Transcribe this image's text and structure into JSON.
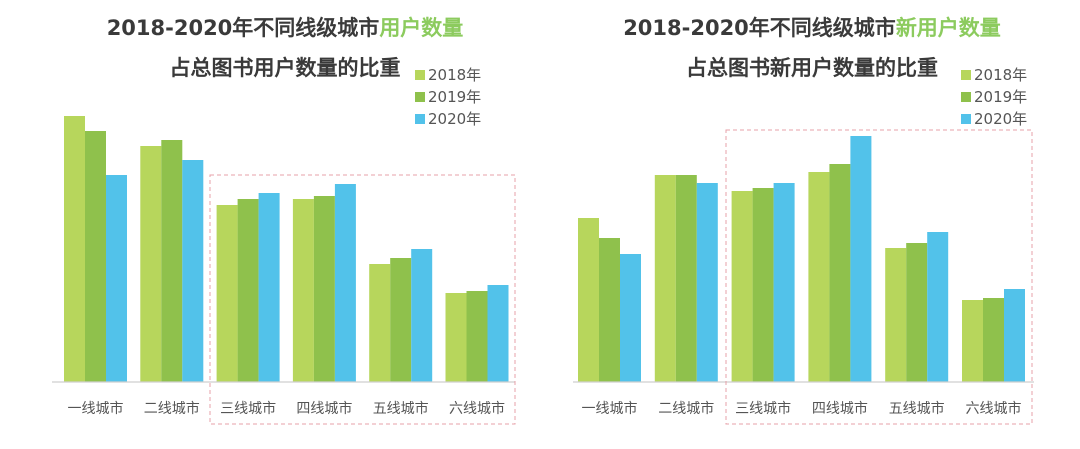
{
  "colors": {
    "2018": "#b7d65c",
    "2019": "#8fc14c",
    "2020": "#52c2ea",
    "title": "#3a3a3a",
    "highlight": "#8ccb5e",
    "box": "#e7a0a8"
  },
  "chart_data": [
    {
      "type": "bar",
      "title_prefix": "2018-2020年不同线级城市",
      "title_highlight": "用户数量",
      "subtitle": "占总图书用户数量的比重",
      "categories": [
        "一线城市",
        "二线城市",
        "三线城市",
        "四线城市",
        "五线城市",
        "六线城市"
      ],
      "series": [
        {
          "name": "2018年",
          "values": [
            266,
            236,
            177,
            183,
            118,
            89
          ]
        },
        {
          "name": "2019年",
          "values": [
            251,
            242,
            183,
            186,
            124,
            91
          ]
        },
        {
          "name": "2020年",
          "values": [
            207,
            222,
            189,
            198,
            133,
            97
          ]
        }
      ],
      "ylim": [
        0,
        280
      ],
      "grid": false,
      "legend": "top-right",
      "highlight_box_categories": [
        "三线城市",
        "四线城市",
        "五线城市",
        "六线城市"
      ]
    },
    {
      "type": "bar",
      "title_prefix": "2018-2020年不同线级城市",
      "title_highlight": "新用户数量",
      "subtitle": "占总图书新用户数量的比重",
      "categories": [
        "一线城市",
        "二线城市",
        "三线城市",
        "四线城市",
        "五线城市",
        "六线城市"
      ],
      "series": [
        {
          "name": "2018年",
          "values": [
            164,
            207,
            191,
            210,
            134,
            82
          ]
        },
        {
          "name": "2019年",
          "values": [
            144,
            207,
            194,
            218,
            139,
            84
          ]
        },
        {
          "name": "2020年",
          "values": [
            128,
            199,
            199,
            246,
            150,
            93
          ]
        }
      ],
      "ylim": [
        0,
        280
      ],
      "grid": false,
      "legend": "top-right",
      "highlight_box_categories": [
        "三线城市",
        "四线城市",
        "五线城市",
        "六线城市"
      ]
    }
  ]
}
